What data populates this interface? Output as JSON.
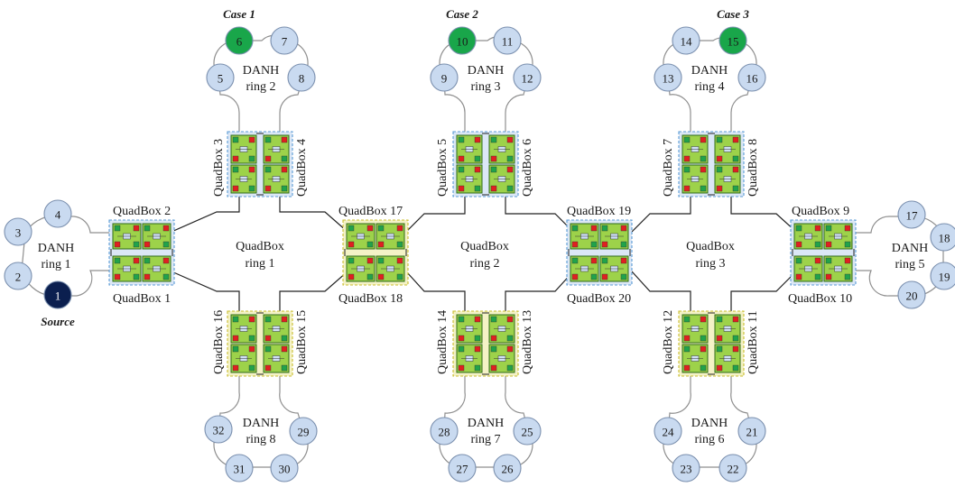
{
  "colors": {
    "node_default": "#c9daf0",
    "node_source": "#0b1f4f",
    "node_case": "#19a64a",
    "quadbox_green": "#9dd24a",
    "quadbox_blue_outline": "#5b9bd5",
    "quadbox_yellow_outline": "#c9bd2e",
    "port_red": "#e02020",
    "port_green": "#21a34a"
  },
  "cases": [
    "Case 1",
    "Case 2",
    "Case 3"
  ],
  "source_label": "Source",
  "danh_rings": [
    {
      "line1": "DANH",
      "line2": "ring 1",
      "nodes": [
        "4",
        "3",
        "2",
        "1"
      ]
    },
    {
      "line1": "DANH",
      "line2": "ring 2",
      "nodes": [
        "6",
        "7",
        "5",
        "8"
      ]
    },
    {
      "line1": "DANH",
      "line2": "ring 3",
      "nodes": [
        "10",
        "11",
        "9",
        "12"
      ]
    },
    {
      "line1": "DANH",
      "line2": "ring 4",
      "nodes": [
        "14",
        "15",
        "13",
        "16"
      ]
    },
    {
      "line1": "DANH",
      "line2": "ring 5",
      "nodes": [
        "17",
        "18",
        "19",
        "20"
      ]
    },
    {
      "line1": "DANH",
      "line2": "ring 6",
      "nodes": [
        "24",
        "21",
        "23",
        "22"
      ]
    },
    {
      "line1": "DANH",
      "line2": "ring 7",
      "nodes": [
        "28",
        "25",
        "27",
        "26"
      ]
    },
    {
      "line1": "DANH",
      "line2": "ring 8",
      "nodes": [
        "32",
        "29",
        "31",
        "30"
      ]
    }
  ],
  "quadbox_rings": [
    {
      "line1": "QuadBox",
      "line2": "ring 1"
    },
    {
      "line1": "QuadBox",
      "line2": "ring 2"
    },
    {
      "line1": "QuadBox",
      "line2": "ring 3"
    }
  ],
  "quadbox_labels": {
    "qb1": "QuadBox 1",
    "qb2": "QuadBox 2",
    "qb3": "QuadBox 3",
    "qb4": "QuadBox 4",
    "qb5": "QuadBox 5",
    "qb6": "QuadBox 6",
    "qb7": "QuadBox 7",
    "qb8": "QuadBox 8",
    "qb9": "QuadBox 9",
    "qb10": "QuadBox 10",
    "qb11": "QuadBox 11",
    "qb12": "QuadBox 12",
    "qb13": "QuadBox 13",
    "qb14": "QuadBox 14",
    "qb15": "QuadBox 15",
    "qb16": "QuadBox 16",
    "qb17": "QuadBox 17",
    "qb18": "QuadBox 18",
    "qb19": "QuadBox 19",
    "qb20": "QuadBox 20"
  }
}
